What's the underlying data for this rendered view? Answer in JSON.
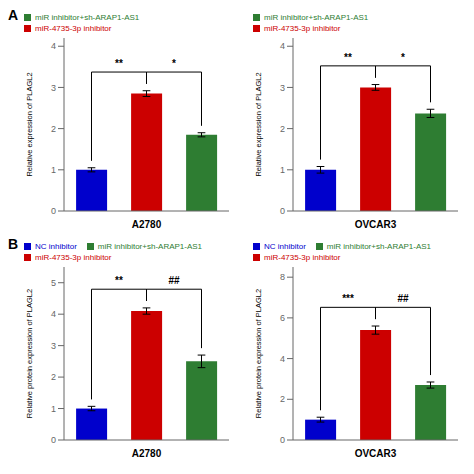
{
  "chart_data": [
    {
      "type": "bar",
      "xlabel": "A2780",
      "ylabel": "Relative expression of PLAGL2",
      "categories": [
        null,
        null,
        null
      ],
      "series": [
        {
          "color": "#0000cc",
          "values": [
            1.0,
            null,
            null
          ],
          "errors": [
            0.05,
            null,
            null
          ]
        },
        {
          "name": "miR-4735-3p inhibitor",
          "color": "#cc0000",
          "values": [
            null,
            2.85,
            null
          ],
          "errors": [
            null,
            0.07,
            null
          ]
        },
        {
          "name": "miR inhibitor+sh-ARAP1-AS1",
          "color": "#2e7d32",
          "values": [
            null,
            null,
            1.85
          ],
          "errors": [
            null,
            null,
            0.05
          ]
        }
      ],
      "ylim": [
        0,
        4.2
      ],
      "yticks": [
        0,
        1,
        2,
        3,
        4
      ],
      "legend": "upper left",
      "annotations": [
        {
          "text": "A"
        },
        {
          "text": "**",
          "x": [
            0,
            1
          ]
        },
        {
          "text": "*",
          "x": [
            1,
            2
          ]
        }
      ]
    },
    {
      "type": "bar",
      "xlabel": "OVCAR3",
      "ylabel": "Relative expression of PLAGL2",
      "categories": [
        null,
        null,
        null
      ],
      "series": [
        {
          "color": "#0000cc",
          "values": [
            1.0,
            null,
            null
          ],
          "errors": [
            0.08,
            null,
            null
          ]
        },
        {
          "name": "miR-4735-3p inhibitor",
          "color": "#cc0000",
          "values": [
            null,
            3.0,
            null
          ],
          "errors": [
            null,
            0.07,
            null
          ]
        },
        {
          "name": "miR inhibitor+sh-ARAP1-AS1",
          "color": "#2e7d32",
          "values": [
            null,
            null,
            2.37
          ],
          "errors": [
            null,
            null,
            0.1
          ]
        }
      ],
      "ylim": [
        0,
        4.2
      ],
      "yticks": [
        0,
        1,
        2,
        3,
        4
      ],
      "legend": "upper left",
      "annotations": [
        {
          "text": "**",
          "x": [
            0,
            1
          ]
        },
        {
          "text": "*",
          "x": [
            1,
            2
          ]
        }
      ]
    },
    {
      "type": "bar",
      "xlabel": "A2780",
      "ylabel": "Relative protein expression of PLAGL2",
      "categories": [
        null,
        null,
        null
      ],
      "series": [
        {
          "name": "NC inhibitor",
          "color": "#0000cc",
          "values": [
            1.0,
            null,
            null
          ],
          "errors": [
            0.07,
            null,
            null
          ]
        },
        {
          "name": "miR-4735-3p inhibitor",
          "color": "#cc0000",
          "values": [
            null,
            4.1,
            null
          ],
          "errors": [
            null,
            0.1,
            null
          ]
        },
        {
          "name": "miR inhibitor+sh-ARAP1-AS1",
          "color": "#2e7d32",
          "values": [
            null,
            null,
            2.5
          ],
          "errors": [
            null,
            null,
            0.2
          ]
        }
      ],
      "ylim": [
        0,
        5.5
      ],
      "yticks": [
        0,
        1,
        2,
        3,
        4,
        5
      ],
      "legend": "upper left",
      "annotations": [
        {
          "text": "B"
        },
        {
          "text": "**",
          "x": [
            0,
            1
          ]
        },
        {
          "text": "##",
          "x": [
            1,
            2
          ]
        }
      ]
    },
    {
      "type": "bar",
      "xlabel": "OVCAR3",
      "ylabel": "Relative protein expression of PLAGL2",
      "categories": [
        null,
        null,
        null
      ],
      "series": [
        {
          "name": "NC inhibitor",
          "color": "#0000cc",
          "values": [
            1.0,
            null,
            null
          ],
          "errors": [
            0.12,
            null,
            null
          ]
        },
        {
          "name": "miR-4735-3p inhibitor",
          "color": "#cc0000",
          "values": [
            null,
            5.4,
            null
          ],
          "errors": [
            null,
            0.2,
            null
          ]
        },
        {
          "name": "miR inhibitor+sh-ARAP1-AS1",
          "color": "#2e7d32",
          "values": [
            null,
            null,
            2.7
          ],
          "errors": [
            null,
            null,
            0.15
          ]
        }
      ],
      "ylim": [
        0,
        8.5
      ],
      "yticks": [
        0,
        2,
        4,
        6,
        8
      ],
      "legend": "upper left",
      "annotations": [
        {
          "text": "***",
          "x": [
            0,
            1
          ]
        },
        {
          "text": "##",
          "x": [
            1,
            2
          ]
        }
      ]
    }
  ]
}
